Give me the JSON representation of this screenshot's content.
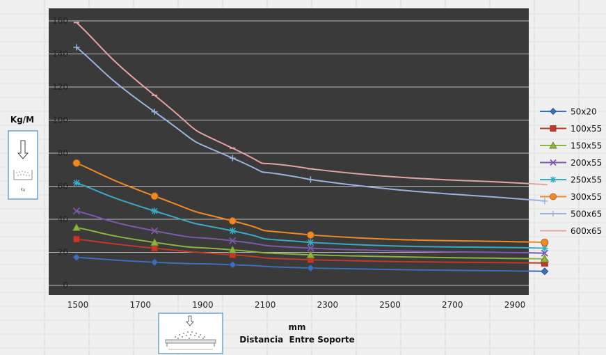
{
  "chart_data": {
    "type": "line",
    "ylabel": "Kg/M",
    "xlabel_unit": "mm",
    "xlabel": "Distancia  Entre Soporte",
    "xlim": [
      1500,
      3000
    ],
    "ylim": [
      0,
      160
    ],
    "xticks": [
      1500,
      1700,
      1900,
      2100,
      2300,
      2500,
      2700,
      2900
    ],
    "yticks": [
      0,
      20,
      40,
      60,
      80,
      100,
      120,
      140,
      160
    ],
    "grid": "horizontal",
    "legend_position": "right",
    "x": [
      1500,
      1750,
      2000,
      2250,
      3000
    ],
    "series": [
      {
        "name": "50x20",
        "color": "#3d6fb6",
        "marker": "diamond",
        "values": [
          17,
          14,
          12.5,
          10.5,
          8.5
        ]
      },
      {
        "name": "100x55",
        "color": "#c0392b",
        "marker": "square",
        "values": [
          28,
          22.5,
          18.5,
          15.5,
          13.5
        ]
      },
      {
        "name": "150x55",
        "color": "#8db43e",
        "marker": "triangle",
        "values": [
          35,
          26,
          21.5,
          18.5,
          16
        ]
      },
      {
        "name": "200x55",
        "color": "#7e57a8",
        "marker": "x",
        "values": [
          45,
          33,
          27,
          22.5,
          19.5
        ]
      },
      {
        "name": "250x55",
        "color": "#3aa9c6",
        "marker": "star",
        "values": [
          62,
          45,
          33,
          26,
          22.5
        ]
      },
      {
        "name": "300x55",
        "color": "#f08a24",
        "marker": "circle",
        "values": [
          74,
          54,
          39,
          30.5,
          26
        ]
      },
      {
        "name": "500x65",
        "color": "#9bb3e0",
        "marker": "plus",
        "values": [
          144,
          105,
          77,
          64,
          51
        ]
      },
      {
        "name": "600x65",
        "color": "#e6a3a3",
        "marker": "dash",
        "values": [
          159,
          115,
          83,
          70.5,
          61
        ]
      }
    ]
  },
  "colors": {
    "plot_background": "#3a3a3a",
    "gridline": "#bdbdbd",
    "axis_text": "#222222"
  },
  "icons": {
    "load_box_icon": "distributed-load-box-icon",
    "load_beam_icon": "load-on-beam-icon"
  }
}
